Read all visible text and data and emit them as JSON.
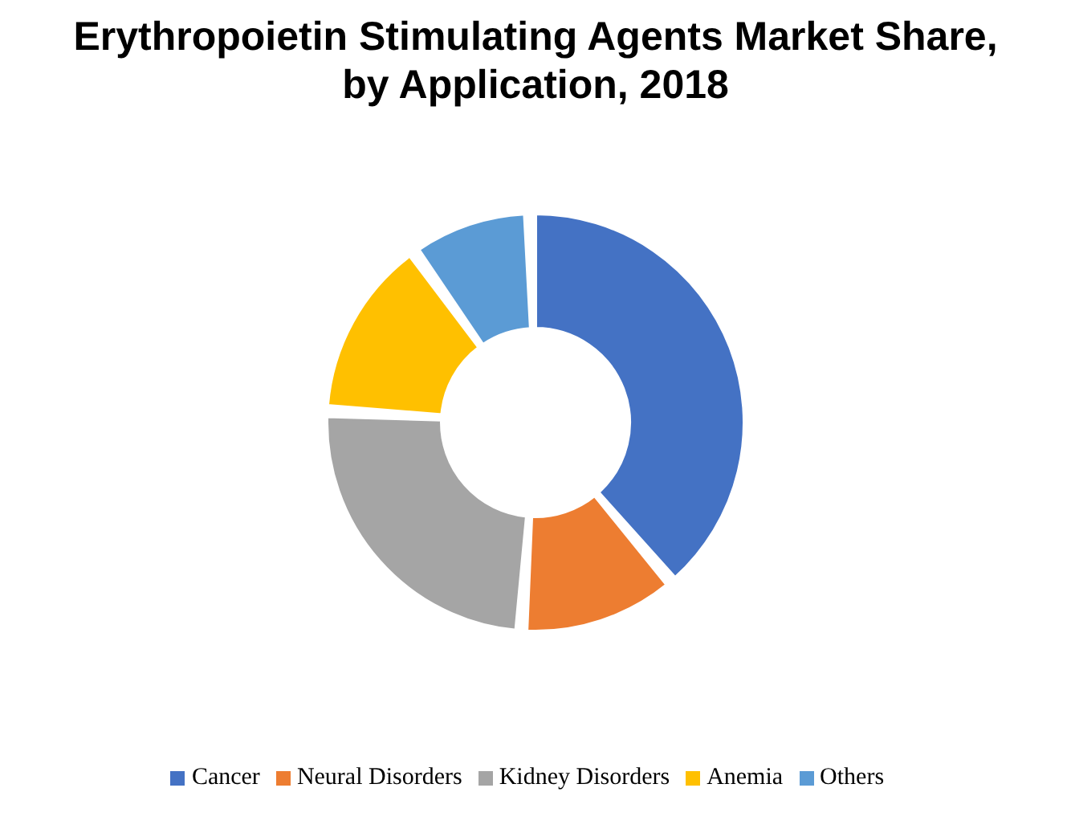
{
  "chart_data": {
    "type": "donut",
    "title": "Erythropoietin Stimulating Agents Market Share, by Application, 2018",
    "categories": [
      "Cancer",
      "Neural Disorders",
      "Kidney Disorders",
      "Anemia",
      "Others"
    ],
    "values": [
      40,
      12,
      25,
      14,
      9
    ],
    "colors": [
      "#4472c4",
      "#ed7d31",
      "#a5a5a5",
      "#ffc000",
      "#5b9bd5"
    ],
    "legend": "bottom"
  }
}
